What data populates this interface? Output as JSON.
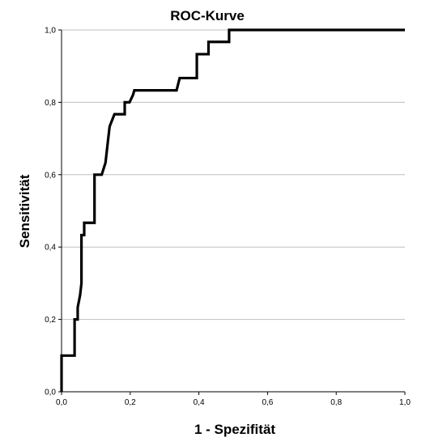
{
  "chart_data": {
    "type": "line",
    "title": "ROC-Kurve",
    "xlabel": "1 - Spezifität",
    "ylabel": "Sensitivität",
    "xlim": [
      0,
      1
    ],
    "ylim": [
      0,
      1
    ],
    "x_ticks": [
      "0,0",
      "0,2",
      "0,4",
      "0,6",
      "0,8",
      "1,0"
    ],
    "y_ticks": [
      "0,0",
      "0,2",
      "0,4",
      "0,6",
      "0,8",
      "1,0"
    ],
    "grid": "horizontal",
    "series": [
      {
        "x": [
          0.0,
          0.0,
          0.038,
          0.038,
          0.047,
          0.047,
          0.054,
          0.058,
          0.058,
          0.066,
          0.066,
          0.076,
          0.076,
          0.096,
          0.096,
          0.117,
          0.128,
          0.136,
          0.14,
          0.14,
          0.154,
          0.184,
          0.184,
          0.198,
          0.198,
          0.208,
          0.212,
          0.335,
          0.344,
          0.394,
          0.394,
          0.428,
          0.428,
          0.488,
          0.488,
          1.0
        ],
        "y": [
          0.0,
          0.1,
          0.1,
          0.2,
          0.2,
          0.233,
          0.267,
          0.3,
          0.433,
          0.433,
          0.467,
          0.467,
          0.467,
          0.467,
          0.6,
          0.6,
          0.633,
          0.7,
          0.733,
          0.733,
          0.767,
          0.767,
          0.8,
          0.8,
          0.8,
          0.82,
          0.833,
          0.833,
          0.867,
          0.867,
          0.933,
          0.933,
          0.967,
          0.967,
          1.0,
          1.0
        ]
      }
    ]
  }
}
